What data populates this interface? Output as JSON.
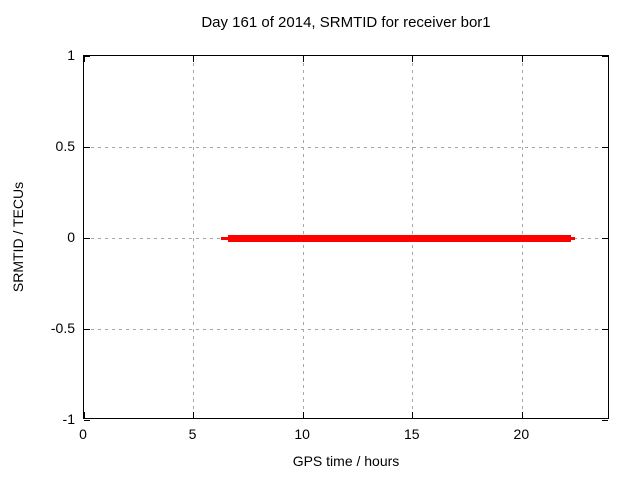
{
  "window": {
    "background_color": "#ffffff"
  },
  "chart_data": {
    "type": "line",
    "title": "Day 161 of 2014, SRMTID for receiver bor1",
    "xlabel": "GPS time / hours",
    "ylabel": "SRMTID / TECUs",
    "xlim": [
      0,
      24
    ],
    "ylim": [
      -1,
      1
    ],
    "xticks": [
      0,
      5,
      10,
      15,
      20
    ],
    "yticks": [
      -1,
      -0.5,
      0,
      0.5,
      1
    ],
    "grid": true,
    "grid_color": "#a6a6a6",
    "axis_color": "#000000",
    "legend_position": "none",
    "series": [
      {
        "name": "SRMTID",
        "color": "#ff0000",
        "style": "thick horizontal line",
        "y_value": 0,
        "x_start": 6.25,
        "x_end": 22.4,
        "segments": [
          {
            "x1": 6.25,
            "x2": 6.55,
            "y": 0,
            "thickness_px": 3
          },
          {
            "x1": 6.55,
            "x2": 22.2,
            "y": 0,
            "thickness_px": 7
          },
          {
            "x1": 22.2,
            "x2": 22.4,
            "y": 0,
            "thickness_px": 3
          }
        ]
      }
    ]
  }
}
